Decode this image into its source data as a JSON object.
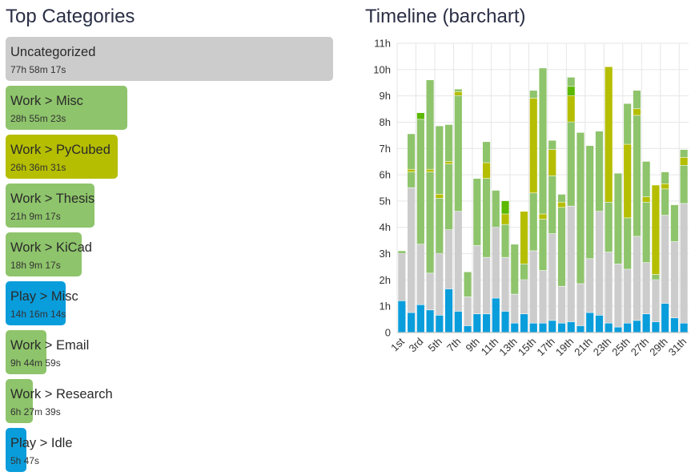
{
  "categories_panel": {
    "title": "Top Categories",
    "items": [
      {
        "name": "Uncategorized",
        "time": "77h 58m 17s",
        "hours": 77.97,
        "color": "#cccccc"
      },
      {
        "name": "Work > Misc",
        "time": "28h 55m 23s",
        "hours": 28.92,
        "color": "#8ec46b"
      },
      {
        "name": "Work > PyCubed",
        "time": "26h 36m 31s",
        "hours": 26.61,
        "color": "#b5be00"
      },
      {
        "name": "Work > Thesis",
        "time": "21h 9m 17s",
        "hours": 21.15,
        "color": "#8ec46b"
      },
      {
        "name": "Work > KiCad",
        "time": "18h 9m 17s",
        "hours": 18.15,
        "color": "#8ec46b"
      },
      {
        "name": "Play > Misc",
        "time": "14h 16m 14s",
        "hours": 14.27,
        "color": "#0a9ddb"
      },
      {
        "name": "Work > Email",
        "time": "9h 44m 59s",
        "hours": 9.75,
        "color": "#8ec46b"
      },
      {
        "name": "Work > Research",
        "time": "6h 27m 39s",
        "hours": 6.46,
        "color": "#8ec46b"
      },
      {
        "name": "Play > Idle",
        "time": "5h 47s",
        "hours": 5.01,
        "color": "#0a9ddb"
      }
    ]
  },
  "timeline_panel": {
    "title": "Timeline (barchart)"
  },
  "colors": {
    "blue": "#0a9ddb",
    "gray": "#cccccc",
    "green": "#8ec46b",
    "olive": "#b5be00",
    "lime": "#5cb800",
    "grid": "#e6e6e6"
  },
  "chart_data": {
    "type": "bar",
    "stacked": true,
    "title": "Timeline (barchart)",
    "ylim": [
      0,
      11
    ],
    "y_ticks": [
      "0",
      "1h",
      "2h",
      "3h",
      "4h",
      "5h",
      "6h",
      "7h",
      "8h",
      "9h",
      "10h",
      "11h"
    ],
    "x_tick_labels": [
      "1st",
      "3rd",
      "5th",
      "7th",
      "9th",
      "11th",
      "13th",
      "15th",
      "17th",
      "19th",
      "21th",
      "23th",
      "25th",
      "27th",
      "29th",
      "31th"
    ],
    "grid": true,
    "unit": "hours",
    "days": [
      {
        "day": 1,
        "segments": [
          {
            "cat": "blue",
            "v": 1.2
          },
          {
            "cat": "gray",
            "v": 1.8
          },
          {
            "cat": "green",
            "v": 0.1
          }
        ]
      },
      {
        "day": 2,
        "segments": [
          {
            "cat": "blue",
            "v": 0.75
          },
          {
            "cat": "gray",
            "v": 4.75
          },
          {
            "cat": "green",
            "v": 0.6
          },
          {
            "cat": "olive",
            "v": 0.1
          },
          {
            "cat": "green",
            "v": 1.35
          }
        ]
      },
      {
        "day": 3,
        "segments": [
          {
            "cat": "blue",
            "v": 1.05
          },
          {
            "cat": "gray",
            "v": 2.3
          },
          {
            "cat": "green",
            "v": 4.75
          },
          {
            "cat": "lime",
            "v": 0.25
          }
        ]
      },
      {
        "day": 4,
        "segments": [
          {
            "cat": "blue",
            "v": 0.85
          },
          {
            "cat": "gray",
            "v": 1.4
          },
          {
            "cat": "green",
            "v": 3.85
          },
          {
            "cat": "olive",
            "v": 0.1
          },
          {
            "cat": "green",
            "v": 3.4
          }
        ]
      },
      {
        "day": 5,
        "segments": [
          {
            "cat": "blue",
            "v": 0.65
          },
          {
            "cat": "gray",
            "v": 2.35
          },
          {
            "cat": "green",
            "v": 2.1
          },
          {
            "cat": "olive",
            "v": 0.15
          },
          {
            "cat": "green",
            "v": 2.6
          }
        ]
      },
      {
        "day": 6,
        "segments": [
          {
            "cat": "blue",
            "v": 1.65
          },
          {
            "cat": "gray",
            "v": 2.25
          },
          {
            "cat": "green",
            "v": 2.5
          },
          {
            "cat": "olive",
            "v": 0.1
          },
          {
            "cat": "green",
            "v": 1.4
          }
        ]
      },
      {
        "day": 7,
        "segments": [
          {
            "cat": "blue",
            "v": 0.8
          },
          {
            "cat": "gray",
            "v": 3.8
          },
          {
            "cat": "green",
            "v": 4.4
          },
          {
            "cat": "olive",
            "v": 0.15
          },
          {
            "cat": "green",
            "v": 0.1
          }
        ]
      },
      {
        "day": 8,
        "segments": [
          {
            "cat": "blue",
            "v": 0.25
          },
          {
            "cat": "gray",
            "v": 1.1
          },
          {
            "cat": "green",
            "v": 0.95
          }
        ]
      },
      {
        "day": 9,
        "segments": [
          {
            "cat": "blue",
            "v": 0.7
          },
          {
            "cat": "gray",
            "v": 2.6
          },
          {
            "cat": "green",
            "v": 2.55
          }
        ]
      },
      {
        "day": 10,
        "segments": [
          {
            "cat": "blue",
            "v": 0.7
          },
          {
            "cat": "gray",
            "v": 2.15
          },
          {
            "cat": "green",
            "v": 3.0
          },
          {
            "cat": "olive",
            "v": 0.6
          },
          {
            "cat": "green",
            "v": 0.8
          }
        ]
      },
      {
        "day": 11,
        "segments": [
          {
            "cat": "blue",
            "v": 1.3
          },
          {
            "cat": "gray",
            "v": 2.7
          },
          {
            "cat": "green",
            "v": 1.4
          }
        ]
      },
      {
        "day": 12,
        "segments": [
          {
            "cat": "blue",
            "v": 0.8
          },
          {
            "cat": "gray",
            "v": 2.05
          },
          {
            "cat": "green",
            "v": 1.25
          },
          {
            "cat": "olive",
            "v": 0.4
          },
          {
            "cat": "lime",
            "v": 0.5
          }
        ]
      },
      {
        "day": 13,
        "segments": [
          {
            "cat": "blue",
            "v": 0.35
          },
          {
            "cat": "gray",
            "v": 1.1
          },
          {
            "cat": "green",
            "v": 1.9
          }
        ]
      },
      {
        "day": 14,
        "segments": [
          {
            "cat": "blue",
            "v": 0.7
          },
          {
            "cat": "gray",
            "v": 1.3
          },
          {
            "cat": "green",
            "v": 0.6
          },
          {
            "cat": "olive",
            "v": 2.0
          }
        ]
      },
      {
        "day": 15,
        "segments": [
          {
            "cat": "blue",
            "v": 0.35
          },
          {
            "cat": "gray",
            "v": 2.75
          },
          {
            "cat": "green",
            "v": 2.2
          },
          {
            "cat": "olive",
            "v": 3.6
          },
          {
            "cat": "green",
            "v": 0.3
          }
        ]
      },
      {
        "day": 16,
        "segments": [
          {
            "cat": "blue",
            "v": 0.35
          },
          {
            "cat": "gray",
            "v": 2.0
          },
          {
            "cat": "green",
            "v": 1.95
          },
          {
            "cat": "olive",
            "v": 0.2
          },
          {
            "cat": "green",
            "v": 5.55
          }
        ]
      },
      {
        "day": 17,
        "segments": [
          {
            "cat": "blue",
            "v": 0.45
          },
          {
            "cat": "gray",
            "v": 3.3
          },
          {
            "cat": "green",
            "v": 2.2
          },
          {
            "cat": "olive",
            "v": 1.0
          },
          {
            "cat": "green",
            "v": 0.35
          }
        ]
      },
      {
        "day": 18,
        "segments": [
          {
            "cat": "blue",
            "v": 0.35
          },
          {
            "cat": "gray",
            "v": 1.4
          },
          {
            "cat": "green",
            "v": 3.0
          },
          {
            "cat": "olive",
            "v": 0.2
          },
          {
            "cat": "green",
            "v": 0.3
          }
        ]
      },
      {
        "day": 19,
        "segments": [
          {
            "cat": "blue",
            "v": 0.4
          },
          {
            "cat": "gray",
            "v": 4.4
          },
          {
            "cat": "green",
            "v": 3.2
          },
          {
            "cat": "olive",
            "v": 1.0
          },
          {
            "cat": "lime",
            "v": 0.35
          },
          {
            "cat": "green",
            "v": 0.35
          }
        ]
      },
      {
        "day": 20,
        "segments": [
          {
            "cat": "blue",
            "v": 0.25
          },
          {
            "cat": "gray",
            "v": 1.6
          },
          {
            "cat": "green",
            "v": 5.75
          }
        ]
      },
      {
        "day": 21,
        "segments": [
          {
            "cat": "blue",
            "v": 0.75
          },
          {
            "cat": "gray",
            "v": 2.05
          },
          {
            "cat": "green",
            "v": 4.3
          }
        ]
      },
      {
        "day": 22,
        "segments": [
          {
            "cat": "blue",
            "v": 0.65
          },
          {
            "cat": "gray",
            "v": 3.95
          },
          {
            "cat": "green",
            "v": 3.05
          }
        ]
      },
      {
        "day": 23,
        "segments": [
          {
            "cat": "blue",
            "v": 0.35
          },
          {
            "cat": "gray",
            "v": 2.7
          },
          {
            "cat": "green",
            "v": 1.9
          },
          {
            "cat": "olive",
            "v": 5.15
          }
        ]
      },
      {
        "day": 24,
        "segments": [
          {
            "cat": "blue",
            "v": 0.2
          },
          {
            "cat": "gray",
            "v": 2.4
          },
          {
            "cat": "green",
            "v": 3.45
          }
        ]
      },
      {
        "day": 25,
        "segments": [
          {
            "cat": "blue",
            "v": 0.35
          },
          {
            "cat": "gray",
            "v": 2.05
          },
          {
            "cat": "green",
            "v": 1.95
          },
          {
            "cat": "olive",
            "v": 2.8
          },
          {
            "cat": "green",
            "v": 1.55
          }
        ]
      },
      {
        "day": 26,
        "segments": [
          {
            "cat": "blue",
            "v": 0.45
          },
          {
            "cat": "gray",
            "v": 3.2
          },
          {
            "cat": "green",
            "v": 4.6
          },
          {
            "cat": "olive",
            "v": 0.25
          },
          {
            "cat": "green",
            "v": 0.7
          }
        ]
      },
      {
        "day": 27,
        "segments": [
          {
            "cat": "blue",
            "v": 0.7
          },
          {
            "cat": "gray",
            "v": 1.95
          },
          {
            "cat": "green",
            "v": 2.3
          },
          {
            "cat": "olive",
            "v": 0.2
          },
          {
            "cat": "green",
            "v": 1.35
          }
        ]
      },
      {
        "day": 28,
        "segments": [
          {
            "cat": "blue",
            "v": 0.4
          },
          {
            "cat": "gray",
            "v": 1.6
          },
          {
            "cat": "green",
            "v": 0.2
          },
          {
            "cat": "olive",
            "v": 3.4
          }
        ]
      },
      {
        "day": 29,
        "segments": [
          {
            "cat": "blue",
            "v": 1.1
          },
          {
            "cat": "gray",
            "v": 3.35
          },
          {
            "cat": "green",
            "v": 1.0
          },
          {
            "cat": "olive",
            "v": 0.2
          },
          {
            "cat": "green",
            "v": 0.45
          }
        ]
      },
      {
        "day": 30,
        "segments": [
          {
            "cat": "blue",
            "v": 0.55
          },
          {
            "cat": "gray",
            "v": 2.9
          },
          {
            "cat": "green",
            "v": 1.4
          }
        ]
      },
      {
        "day": 31,
        "segments": [
          {
            "cat": "blue",
            "v": 0.35
          },
          {
            "cat": "gray",
            "v": 4.55
          },
          {
            "cat": "green",
            "v": 1.45
          },
          {
            "cat": "olive",
            "v": 0.3
          },
          {
            "cat": "green",
            "v": 0.3
          }
        ]
      }
    ]
  }
}
